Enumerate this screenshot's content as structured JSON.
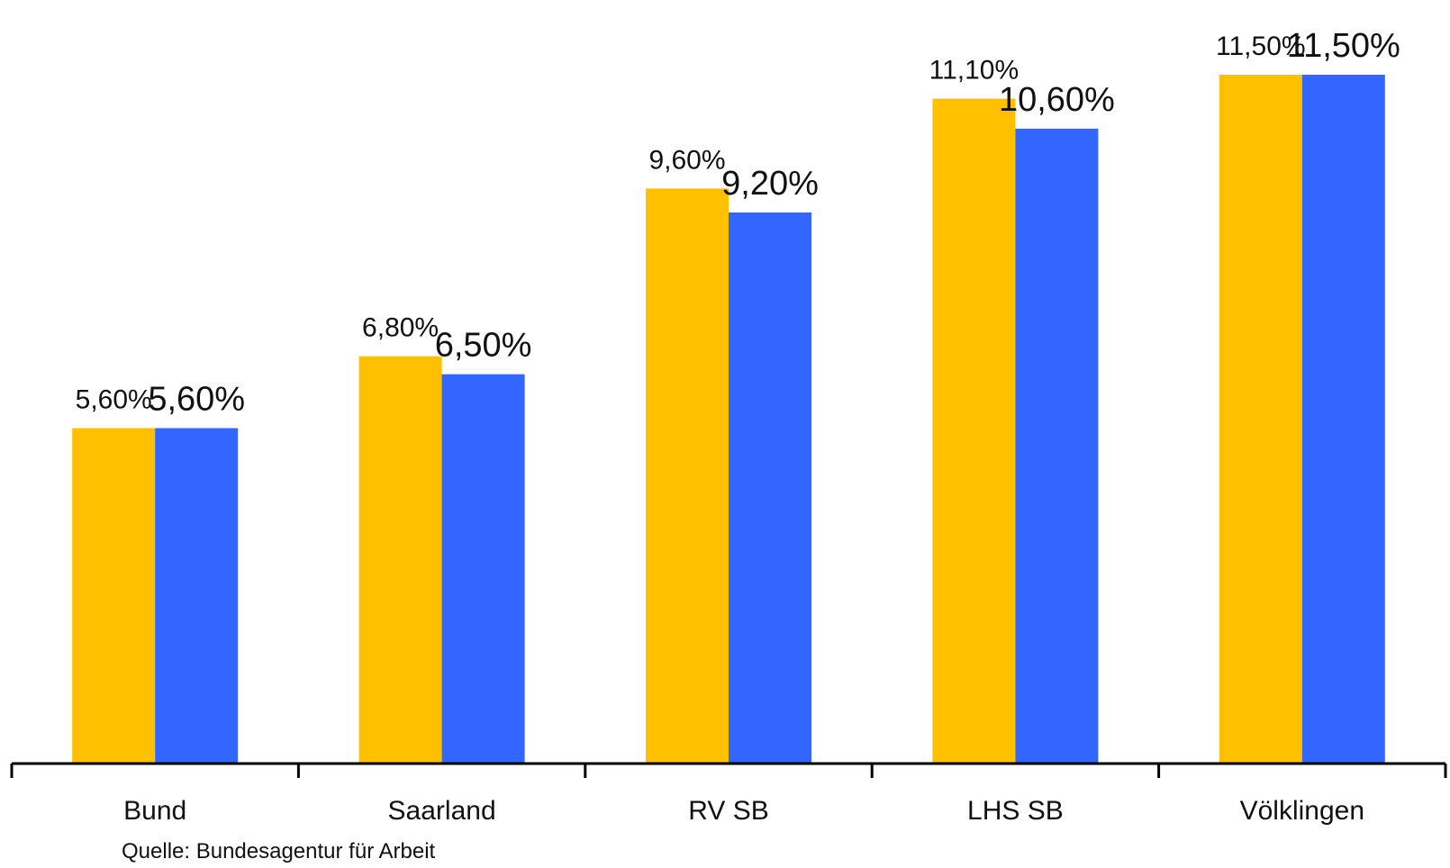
{
  "chart_data": {
    "type": "bar",
    "categories": [
      "Bund",
      "Saarland",
      "RV SB",
      "LHS SB",
      "Völklingen"
    ],
    "series": [
      {
        "values": [
          5.6,
          6.8,
          9.6,
          11.1,
          11.5
        ],
        "labels": [
          "5,60%",
          "6,80%",
          "9,60%",
          "11,10%",
          "11,50%"
        ],
        "color": "#FFC000"
      },
      {
        "values": [
          5.6,
          6.5,
          9.2,
          10.6,
          11.5
        ],
        "labels": [
          "5,60%",
          "6,50%",
          "9,20%",
          "10,60%",
          "11,50%"
        ],
        "color": "#3366FF"
      }
    ],
    "ylim": [
      0,
      13
    ],
    "grid": false,
    "legend": "none",
    "title": "",
    "xlabel": "",
    "ylabel": ""
  },
  "source": "Quelle: Bundesagentur für Arbeit"
}
